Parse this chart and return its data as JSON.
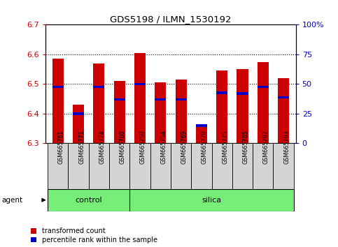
{
  "title": "GDS5198 / ILMN_1530192",
  "samples": [
    "GSM665761",
    "GSM665771",
    "GSM665774",
    "GSM665788",
    "GSM665750",
    "GSM665754",
    "GSM665769",
    "GSM665770",
    "GSM665775",
    "GSM665785",
    "GSM665792",
    "GSM665793"
  ],
  "groups": [
    "control",
    "control",
    "control",
    "control",
    "silica",
    "silica",
    "silica",
    "silica",
    "silica",
    "silica",
    "silica",
    "silica"
  ],
  "transformed_count": [
    6.585,
    6.43,
    6.57,
    6.51,
    6.605,
    6.505,
    6.515,
    6.365,
    6.545,
    6.55,
    6.575,
    6.52
  ],
  "percentile_rank": [
    6.49,
    6.4,
    6.49,
    6.448,
    6.5,
    6.448,
    6.448,
    6.36,
    6.47,
    6.468,
    6.49,
    6.455
  ],
  "ylim_min": 6.3,
  "ylim_max": 6.7,
  "yticks_left": [
    6.3,
    6.4,
    6.5,
    6.6,
    6.7
  ],
  "yticks_right": [
    0,
    25,
    50,
    75,
    100
  ],
  "bar_color": "#cc0000",
  "percentile_color": "#0000cc",
  "bar_width": 0.55,
  "group_color": "#77ee77",
  "legend_items": [
    "transformed count",
    "percentile rank within the sample"
  ],
  "left_tick_color": "#cc0000",
  "right_tick_color": "#0000cc",
  "n_control": 4,
  "n_silica": 8,
  "blue_bar_height": 0.008
}
